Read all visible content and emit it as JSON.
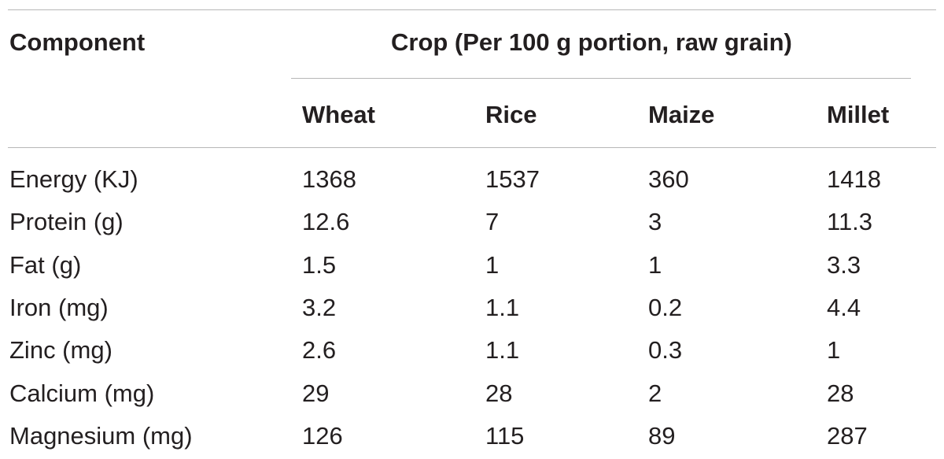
{
  "table": {
    "header": {
      "component_label": "Component",
      "group_label": "Crop (Per 100 g portion, raw grain)",
      "columns": [
        "Wheat",
        "Rice",
        "Maize",
        "Millet"
      ]
    },
    "rows": [
      {
        "label": "Energy (KJ)",
        "values": [
          "1368",
          "1537",
          "360",
          "1418"
        ]
      },
      {
        "label": "Protein (g)",
        "values": [
          "12.6",
          "7",
          "3",
          "11.3"
        ]
      },
      {
        "label": "Fat (g)",
        "values": [
          "1.5",
          "1",
          "1",
          "3.3"
        ]
      },
      {
        "label": "Iron (mg)",
        "values": [
          "3.2",
          "1.1",
          "0.2",
          "4.4"
        ]
      },
      {
        "label": "Zinc (mg)",
        "values": [
          "2.6",
          "1.1",
          "0.3",
          "1"
        ]
      },
      {
        "label": "Calcium (mg)",
        "values": [
          "29",
          "28",
          "2",
          "28"
        ]
      },
      {
        "label": "Magnesium (mg)",
        "values": [
          "126",
          "115",
          "89",
          "287"
        ]
      }
    ]
  }
}
